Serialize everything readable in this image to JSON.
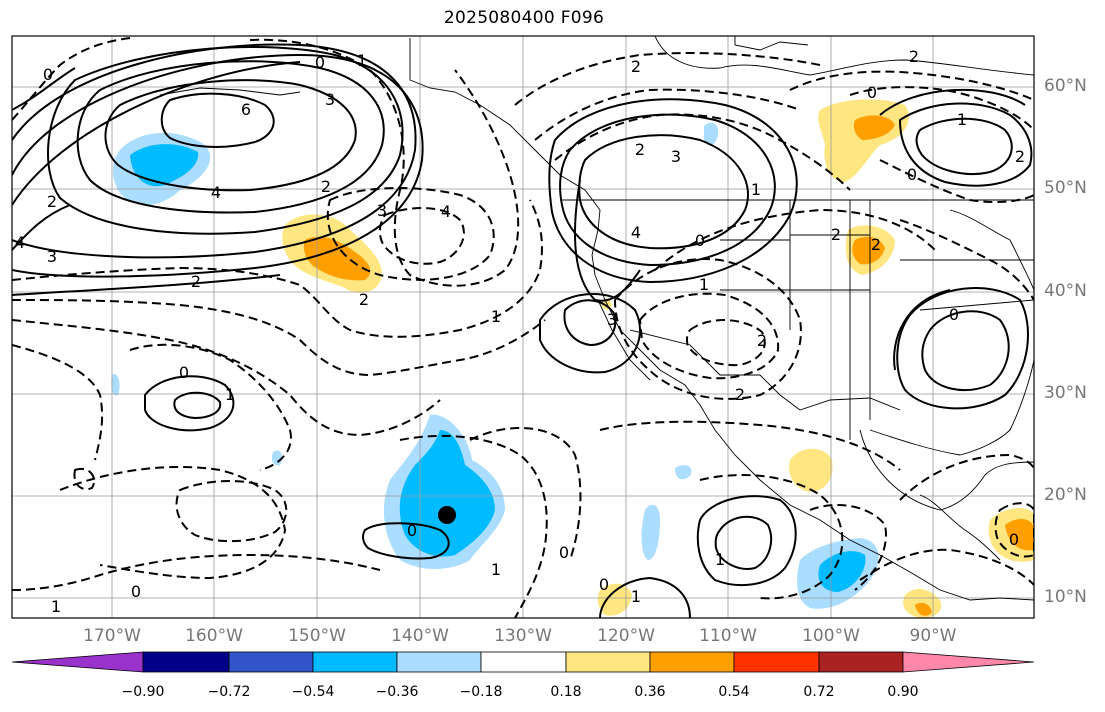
{
  "title": "2025080400 F096",
  "lat_labels": [
    "60°N",
    "50°N",
    "40°N",
    "30°N",
    "20°N",
    "10°N"
  ],
  "lon_labels": [
    "170°W",
    "160°W",
    "150°W",
    "140°W",
    "130°W",
    "120°W",
    "110°W",
    "100°W",
    "90°W"
  ],
  "colorbar": {
    "ticks": [
      "−0.90",
      "−0.72",
      "−0.54",
      "−0.36",
      "−0.18",
      "0.18",
      "0.36",
      "0.54",
      "0.72",
      "0.90"
    ],
    "colors": [
      "#9933cc",
      "#000088",
      "#3355cc",
      "#00bbff",
      "#aaddff",
      "#ffffff",
      "#ffe680",
      "#ffa000",
      "#ff3300",
      "#aa2222",
      "#ff88aa"
    ]
  },
  "contour_labels": [
    "0",
    "0",
    "2",
    "3",
    "6",
    "4",
    "2",
    "3",
    "2",
    "3",
    "4",
    "2",
    "1",
    "2",
    "3",
    "4",
    "0",
    "2",
    "0",
    "0",
    "2",
    "3",
    "2",
    "1",
    "2",
    "0",
    "1",
    "0",
    "1",
    "1",
    "0",
    "0",
    "1",
    "4",
    "0",
    "1",
    "2",
    "2",
    "1",
    "2",
    "0",
    "0",
    "1",
    "1"
  ],
  "storm_marker": "black-dot"
}
